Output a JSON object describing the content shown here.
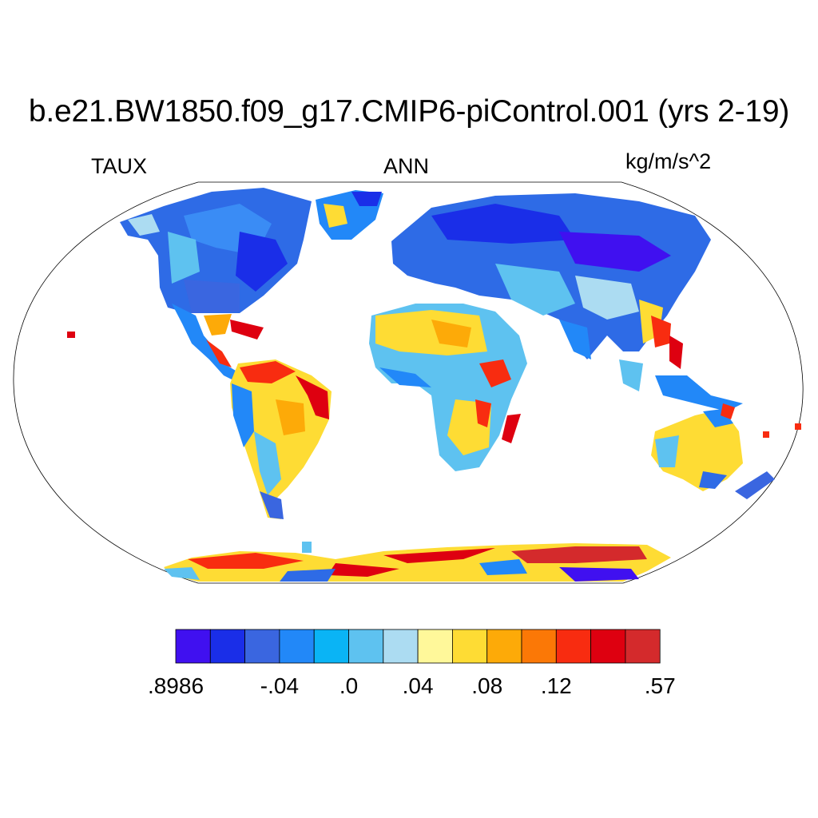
{
  "title": "b.e21.BW1850.f09_g17.CMIP6-piControl.001 (yrs 2-19)",
  "left_label": "TAUX",
  "center_label": "ANN",
  "right_label": "kg/m/s^2",
  "colorbar": {
    "colors": [
      "#4010f0",
      "#1a2ee8",
      "#3a66e0",
      "#2288f8",
      "#0ab4f5",
      "#5ec2f0",
      "#acdcf2",
      "#fff89a",
      "#fedc34",
      "#fdaa08",
      "#fb7806",
      "#f82c10",
      "#de0010",
      "#d42a2c"
    ],
    "tick_labels": [
      ".8986",
      "-.04",
      ".0",
      ".04",
      ".08",
      ".12",
      ".57"
    ],
    "tick_boxes": [
      0,
      3,
      5,
      7,
      9,
      11,
      14
    ]
  },
  "map_data": {
    "projection": "robinson",
    "variable": "TAUX",
    "season": "ANN",
    "units": "kg/m/s^2"
  }
}
